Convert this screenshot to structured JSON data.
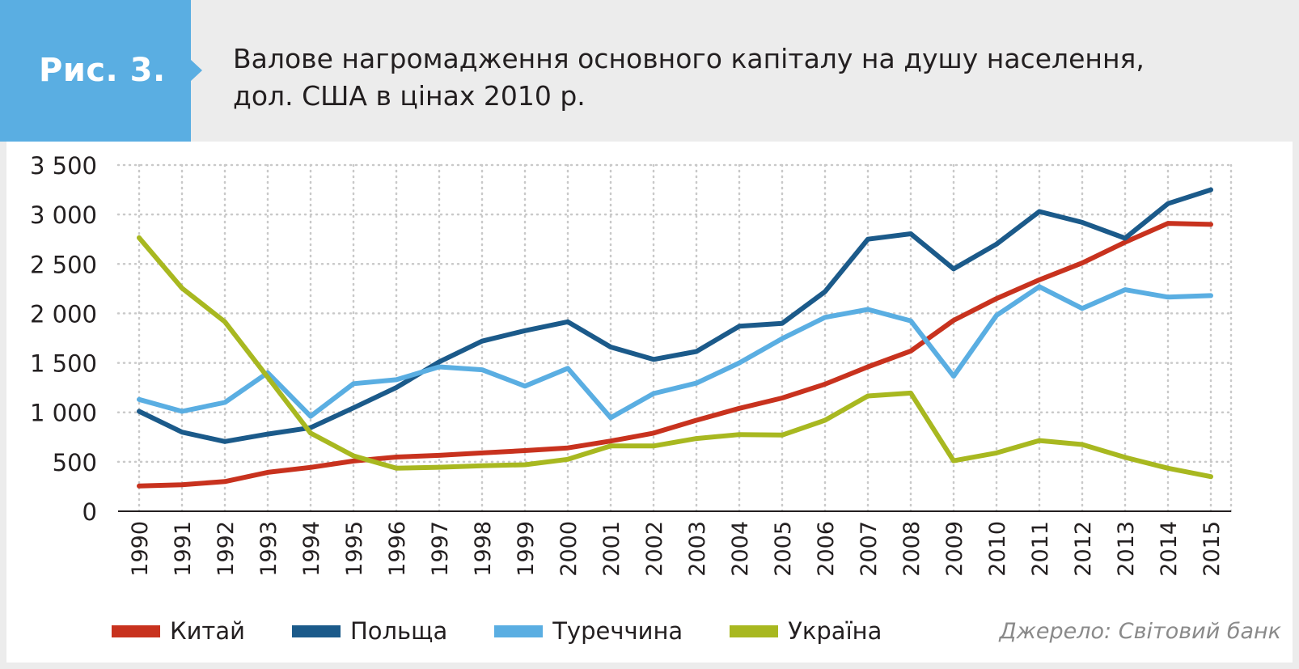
{
  "figure": {
    "badge": "Рис. 3.",
    "title_line1": "Валове нагромадження основного капіталу на душу населення,",
    "title_line2": "дол. США в цінах 2010 р.",
    "source": "Джерело: Світовий банк"
  },
  "colors": {
    "badge": "#5aaee2",
    "china": "#c8321e",
    "poland": "#1b5a8a",
    "turkey": "#5aaee2",
    "ukraine": "#a8b820",
    "grid": "#c9c9c9",
    "axis": "#231f20"
  },
  "chart_data": {
    "type": "line",
    "title": "Валове нагромадження основного капіталу на душу населення, дол. США в цінах 2010 р.",
    "xlabel": "",
    "ylabel": "",
    "ylim": [
      0,
      3500
    ],
    "yticks": [
      0,
      500,
      1000,
      1500,
      2000,
      2500,
      3000,
      3500
    ],
    "ytick_labels": [
      "0",
      "500",
      "1 000",
      "1 500",
      "2 000",
      "2 500",
      "3 000",
      "3 500"
    ],
    "grid": true,
    "legend_position": "bottom-left",
    "categories": [
      "1990",
      "1991",
      "1992",
      "1993",
      "1994",
      "1995",
      "1996",
      "1997",
      "1998",
      "1999",
      "2000",
      "2001",
      "2002",
      "2003",
      "2004",
      "2005",
      "2006",
      "2007",
      "2008",
      "2009",
      "2010",
      "2011",
      "2012",
      "2013",
      "2014",
      "2015"
    ],
    "series": [
      {
        "name": "Китай",
        "color": "#c8321e",
        "values": [
          255,
          268,
          300,
          393,
          443,
          508,
          548,
          565,
          590,
          613,
          640,
          710,
          790,
          920,
          1040,
          1145,
          1285,
          1460,
          1620,
          1930,
          2150,
          2340,
          2510,
          2720,
          2910,
          2900
        ]
      },
      {
        "name": "Польща",
        "color": "#1b5a8a",
        "values": [
          1010,
          800,
          705,
          780,
          845,
          1045,
          1250,
          1510,
          1720,
          1825,
          1915,
          1660,
          1535,
          1615,
          1870,
          1900,
          2220,
          2750,
          2805,
          2450,
          2700,
          3030,
          2920,
          2760,
          3110,
          3250
        ]
      },
      {
        "name": "Туреччина",
        "color": "#5aaee2",
        "values": [
          1130,
          1010,
          1100,
          1400,
          960,
          1290,
          1330,
          1460,
          1430,
          1265,
          1445,
          945,
          1190,
          1295,
          1500,
          1745,
          1960,
          2040,
          1925,
          1365,
          1980,
          2270,
          2050,
          2240,
          2165,
          2180
        ]
      },
      {
        "name": "Україна",
        "color": "#a8b820",
        "values": [
          2765,
          2255,
          1915,
          1355,
          790,
          560,
          435,
          445,
          460,
          470,
          525,
          660,
          660,
          735,
          775,
          770,
          920,
          1165,
          1195,
          510,
          590,
          715,
          675,
          545,
          435,
          350
        ]
      }
    ]
  }
}
